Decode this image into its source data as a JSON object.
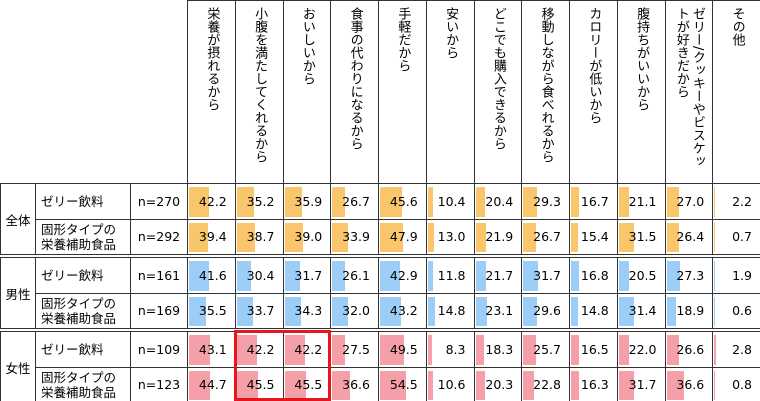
{
  "header": {
    "columns": [
      "栄養が摂れるから",
      "小腹を満たしてくれるから",
      "おいしいから",
      "食事の代わりになるから",
      "手軽だから",
      "安いから",
      "どこでも購入できるから",
      "移動しながら食べれるから",
      "カロリーが低いから",
      "腹持ちがいいから",
      "ゼリー/クッキーやビスケットが好きだから",
      "その他"
    ]
  },
  "groups": [
    {
      "label": "全体",
      "rows": [
        {
          "category": "ゼリー飲料",
          "n": "n=270",
          "values": [
            "42.2",
            "35.2",
            "35.9",
            "26.7",
            "45.6",
            "10.4",
            "20.4",
            "29.3",
            "16.7",
            "21.1",
            "27.0",
            "2.2"
          ]
        },
        {
          "category": "固形タイプの栄養補助食品",
          "n": "n=292",
          "values": [
            "39.4",
            "38.7",
            "39.0",
            "33.9",
            "47.9",
            "13.0",
            "21.9",
            "26.7",
            "15.4",
            "31.5",
            "26.4",
            "0.7"
          ]
        }
      ]
    },
    {
      "label": "男性",
      "rows": [
        {
          "category": "ゼリー飲料",
          "n": "n=161",
          "values": [
            "41.6",
            "30.4",
            "31.7",
            "26.1",
            "42.9",
            "11.8",
            "21.7",
            "31.7",
            "16.8",
            "20.5",
            "27.3",
            "1.9"
          ]
        },
        {
          "category": "固形タイプの栄養補助食品",
          "n": "n=169",
          "values": [
            "35.5",
            "33.7",
            "34.3",
            "32.0",
            "43.2",
            "14.8",
            "23.1",
            "29.6",
            "14.8",
            "31.4",
            "18.9",
            "0.6"
          ]
        }
      ]
    },
    {
      "label": "女性",
      "rows": [
        {
          "category": "ゼリー飲料",
          "n": "n=109",
          "values": [
            "43.1",
            "42.2",
            "42.2",
            "27.5",
            "49.5",
            "8.3",
            "18.3",
            "25.7",
            "16.5",
            "22.0",
            "26.6",
            "2.8"
          ]
        },
        {
          "category": "固形タイプの栄養補助食品",
          "n": "n=123",
          "values": [
            "44.7",
            "45.5",
            "45.5",
            "36.6",
            "54.5",
            "10.6",
            "20.3",
            "22.8",
            "16.3",
            "31.7",
            "36.6",
            "0.8"
          ]
        }
      ]
    }
  ]
}
